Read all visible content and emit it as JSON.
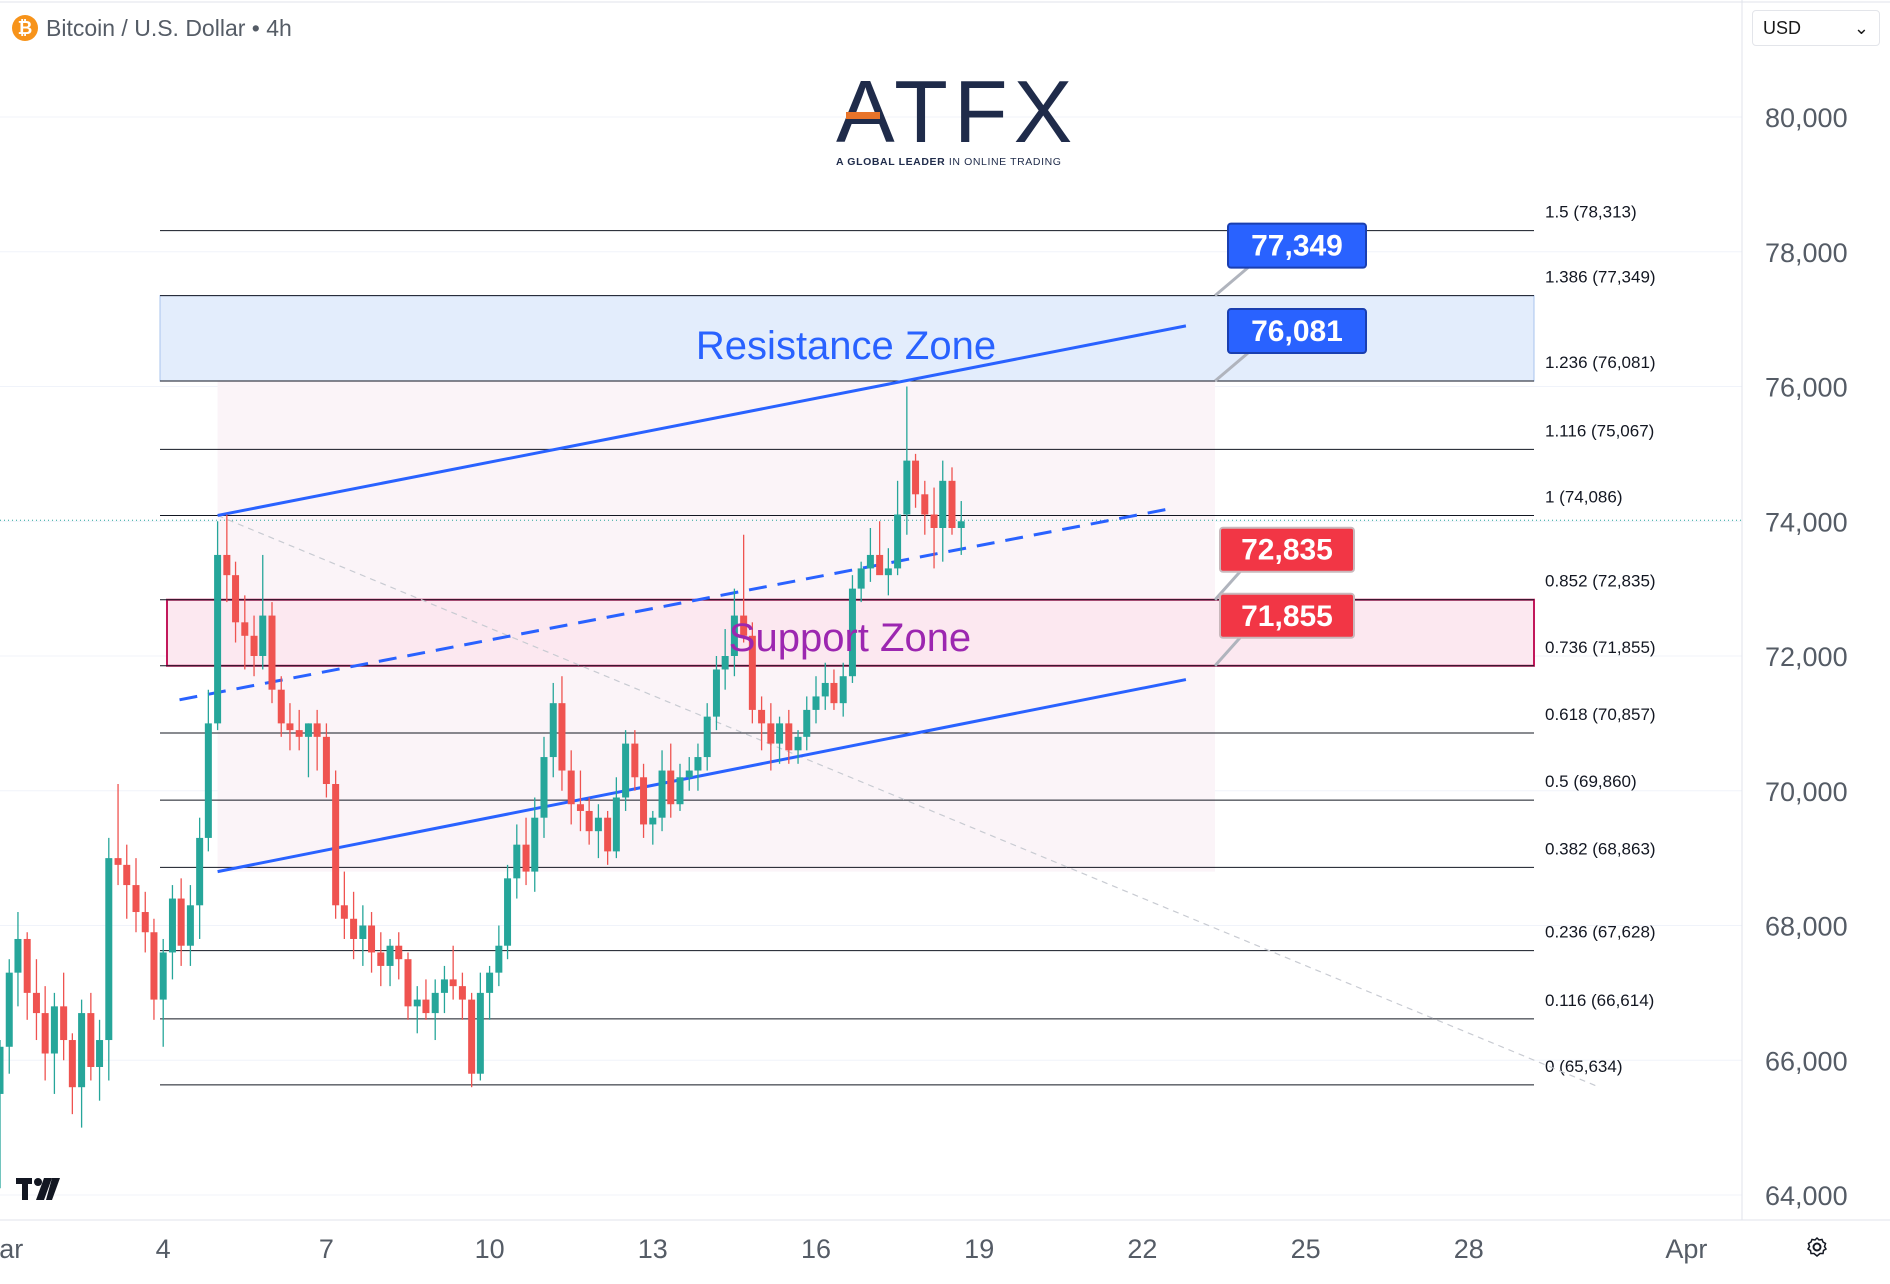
{
  "header": {
    "coin_symbol": "₿",
    "symbol": "Bitcoin / U.S. Dollar • 4h"
  },
  "currency_select": {
    "value": "USD"
  },
  "logo": {
    "name": "ATFX",
    "tagline_bold": "A GLOBAL LEADER",
    "tagline_rest": "IN ONLINE TRADING"
  },
  "icons": {
    "tradingview": "tradingview-logo-icon",
    "settings": "settings-icon",
    "coin": "bitcoin-icon",
    "dropdown": "chevron-down-icon"
  },
  "colors": {
    "up": "#26a69a",
    "down": "#ef5350",
    "trend": "#2962ff",
    "resistance_fill": "#e3edfc",
    "support_border": "#c2185b",
    "support_fill": "#fce8f0",
    "support_text": "#9c27b0",
    "blue_label": "#2962ff",
    "red_label": "#f23645"
  },
  "chart_data": {
    "type": "candlestick",
    "title": "Bitcoin / U.S. Dollar • 4h",
    "y_axis": {
      "min": 64000,
      "max": 80000,
      "ticks": [
        "64,000",
        "66,000",
        "68,000",
        "70,000",
        "72,000",
        "74,000",
        "76,000",
        "78,000",
        "80,000"
      ],
      "tick_values": [
        64000,
        66000,
        68000,
        70000,
        72000,
        74000,
        76000,
        78000,
        80000
      ]
    },
    "x_axis": {
      "labels": [
        "Mar",
        "4",
        "7",
        "10",
        "13",
        "16",
        "19",
        "22",
        "25",
        "28",
        "Apr"
      ],
      "label_days": [
        1,
        4,
        7,
        10,
        13,
        16,
        19,
        22,
        25,
        28,
        32
      ]
    },
    "fib_levels": [
      {
        "ratio": "1.5",
        "value": 78313,
        "label": "1.5 (78,313)"
      },
      {
        "ratio": "1.386",
        "value": 77349,
        "label": "1.386 (77,349)"
      },
      {
        "ratio": "1.236",
        "value": 76081,
        "label": "1.236 (76,081)"
      },
      {
        "ratio": "1.116",
        "value": 75067,
        "label": "1.116 (75,067)"
      },
      {
        "ratio": "1",
        "value": 74086,
        "label": "1 (74,086)"
      },
      {
        "ratio": "0.852",
        "value": 72835,
        "label": "0.852 (72,835)"
      },
      {
        "ratio": "0.736",
        "value": 71855,
        "label": "0.736 (71,855)"
      },
      {
        "ratio": "0.618",
        "value": 70857,
        "label": "0.618 (70,857)"
      },
      {
        "ratio": "0.5",
        "value": 69860,
        "label": "0.5 (69,860)"
      },
      {
        "ratio": "0.382",
        "value": 68863,
        "label": "0.382 (68,863)"
      },
      {
        "ratio": "0.236",
        "value": 67628,
        "label": "0.236 (67,628)"
      },
      {
        "ratio": "0.116",
        "value": 66614,
        "label": "0.116 (66,614)"
      },
      {
        "ratio": "0",
        "value": 65634,
        "label": "0 (65,634)"
      }
    ],
    "zones": [
      {
        "name": "Resistance Zone",
        "low": 76081,
        "high": 77349
      },
      {
        "name": "Support Zone",
        "low": 71855,
        "high": 72835
      }
    ],
    "price_labels": [
      {
        "text": "77,349",
        "value": 77349,
        "color": "blue"
      },
      {
        "text": "76,081",
        "value": 76081,
        "color": "blue"
      },
      {
        "text": "72,835",
        "value": 72835,
        "color": "red"
      },
      {
        "text": "71,855",
        "value": 71855,
        "color": "red"
      }
    ],
    "channel": {
      "upper": [
        [
          5.0,
          74086
        ],
        [
          22.8,
          76900
        ]
      ],
      "lower": [
        [
          5.0,
          68800
        ],
        [
          22.8,
          71650
        ]
      ],
      "middle": [
        [
          4.3,
          71350
        ],
        [
          22.6,
          74200
        ]
      ]
    },
    "diagonal_dotted": [
      [
        5.0,
        74086
      ],
      [
        30.4,
        65600
      ]
    ],
    "last_price": 74000,
    "candles": [
      {
        "t": 1.0,
        "o": 65500,
        "h": 66300,
        "l": 64100,
        "c": 66200
      },
      {
        "t": 1.17,
        "o": 66200,
        "h": 67500,
        "l": 65800,
        "c": 67300
      },
      {
        "t": 1.33,
        "o": 67300,
        "h": 68200,
        "l": 66800,
        "c": 67800
      },
      {
        "t": 1.5,
        "o": 67800,
        "h": 67900,
        "l": 66600,
        "c": 67000
      },
      {
        "t": 1.67,
        "o": 67000,
        "h": 67500,
        "l": 66300,
        "c": 66700
      },
      {
        "t": 1.83,
        "o": 66700,
        "h": 67100,
        "l": 65700,
        "c": 66100
      },
      {
        "t": 2.0,
        "o": 66100,
        "h": 67000,
        "l": 65500,
        "c": 66800
      },
      {
        "t": 2.17,
        "o": 66800,
        "h": 67300,
        "l": 66000,
        "c": 66300
      },
      {
        "t": 2.33,
        "o": 66300,
        "h": 66400,
        "l": 65200,
        "c": 65600
      },
      {
        "t": 2.5,
        "o": 65600,
        "h": 66900,
        "l": 65000,
        "c": 66700
      },
      {
        "t": 2.67,
        "o": 66700,
        "h": 67000,
        "l": 65700,
        "c": 65900
      },
      {
        "t": 2.83,
        "o": 65900,
        "h": 66600,
        "l": 65400,
        "c": 66300
      },
      {
        "t": 3.0,
        "o": 66300,
        "h": 69300,
        "l": 65700,
        "c": 69000
      },
      {
        "t": 3.17,
        "o": 69000,
        "h": 70100,
        "l": 68600,
        "c": 68900
      },
      {
        "t": 3.33,
        "o": 68900,
        "h": 69200,
        "l": 68100,
        "c": 68600
      },
      {
        "t": 3.5,
        "o": 68600,
        "h": 69000,
        "l": 67900,
        "c": 68200
      },
      {
        "t": 3.67,
        "o": 68200,
        "h": 68500,
        "l": 67600,
        "c": 67900
      },
      {
        "t": 3.83,
        "o": 67900,
        "h": 68100,
        "l": 66600,
        "c": 66900
      },
      {
        "t": 4.0,
        "o": 66900,
        "h": 67800,
        "l": 66200,
        "c": 67600
      },
      {
        "t": 4.17,
        "o": 67600,
        "h": 68600,
        "l": 67200,
        "c": 68400
      },
      {
        "t": 4.33,
        "o": 68400,
        "h": 68700,
        "l": 67400,
        "c": 67700
      },
      {
        "t": 4.5,
        "o": 67700,
        "h": 68600,
        "l": 67400,
        "c": 68300
      },
      {
        "t": 4.67,
        "o": 68300,
        "h": 69600,
        "l": 67800,
        "c": 69300
      },
      {
        "t": 4.83,
        "o": 69300,
        "h": 71500,
        "l": 69100,
        "c": 71000
      },
      {
        "t": 5.0,
        "o": 71000,
        "h": 74000,
        "l": 70900,
        "c": 73500
      },
      {
        "t": 5.17,
        "o": 73500,
        "h": 74100,
        "l": 72800,
        "c": 73200
      },
      {
        "t": 5.33,
        "o": 73200,
        "h": 73400,
        "l": 72200,
        "c": 72500
      },
      {
        "t": 5.5,
        "o": 72500,
        "h": 72900,
        "l": 71800,
        "c": 72300
      },
      {
        "t": 5.67,
        "o": 72300,
        "h": 72600,
        "l": 71700,
        "c": 72000
      },
      {
        "t": 5.83,
        "o": 72000,
        "h": 73500,
        "l": 71800,
        "c": 72600
      },
      {
        "t": 6.0,
        "o": 72600,
        "h": 72800,
        "l": 71300,
        "c": 71500
      },
      {
        "t": 6.17,
        "o": 71500,
        "h": 71700,
        "l": 70800,
        "c": 71000
      },
      {
        "t": 6.33,
        "o": 71000,
        "h": 71300,
        "l": 70600,
        "c": 70900
      },
      {
        "t": 6.5,
        "o": 70900,
        "h": 71200,
        "l": 70600,
        "c": 70800
      },
      {
        "t": 6.67,
        "o": 70800,
        "h": 71000,
        "l": 70200,
        "c": 71000
      },
      {
        "t": 6.83,
        "o": 71000,
        "h": 71200,
        "l": 70300,
        "c": 70800
      },
      {
        "t": 7.0,
        "o": 70800,
        "h": 71000,
        "l": 69900,
        "c": 70100
      },
      {
        "t": 7.17,
        "o": 70100,
        "h": 70300,
        "l": 68100,
        "c": 68300
      },
      {
        "t": 7.33,
        "o": 68300,
        "h": 68800,
        "l": 67800,
        "c": 68100
      },
      {
        "t": 7.5,
        "o": 68100,
        "h": 68500,
        "l": 67500,
        "c": 67800
      },
      {
        "t": 7.67,
        "o": 67800,
        "h": 68300,
        "l": 67400,
        "c": 68000
      },
      {
        "t": 7.83,
        "o": 68000,
        "h": 68200,
        "l": 67300,
        "c": 67600
      },
      {
        "t": 8.0,
        "o": 67600,
        "h": 67900,
        "l": 67100,
        "c": 67400
      },
      {
        "t": 8.17,
        "o": 67400,
        "h": 67800,
        "l": 67100,
        "c": 67700
      },
      {
        "t": 8.33,
        "o": 67700,
        "h": 67900,
        "l": 67200,
        "c": 67500
      },
      {
        "t": 8.5,
        "o": 67500,
        "h": 67600,
        "l": 66600,
        "c": 66800
      },
      {
        "t": 8.67,
        "o": 66800,
        "h": 67100,
        "l": 66400,
        "c": 66900
      },
      {
        "t": 8.83,
        "o": 66900,
        "h": 67200,
        "l": 66600,
        "c": 66700
      },
      {
        "t": 9.0,
        "o": 66700,
        "h": 67200,
        "l": 66300,
        "c": 67000
      },
      {
        "t": 9.17,
        "o": 67000,
        "h": 67400,
        "l": 66700,
        "c": 67200
      },
      {
        "t": 9.33,
        "o": 67200,
        "h": 67700,
        "l": 66900,
        "c": 67100
      },
      {
        "t": 9.5,
        "o": 67100,
        "h": 67300,
        "l": 66600,
        "c": 66900
      },
      {
        "t": 9.67,
        "o": 66900,
        "h": 67000,
        "l": 65600,
        "c": 65800
      },
      {
        "t": 9.83,
        "o": 65800,
        "h": 67300,
        "l": 65700,
        "c": 67000
      },
      {
        "t": 10.0,
        "o": 67000,
        "h": 67400,
        "l": 66600,
        "c": 67300
      },
      {
        "t": 10.17,
        "o": 67300,
        "h": 68000,
        "l": 67100,
        "c": 67700
      },
      {
        "t": 10.33,
        "o": 67700,
        "h": 68900,
        "l": 67500,
        "c": 68700
      },
      {
        "t": 10.5,
        "o": 68700,
        "h": 69500,
        "l": 68400,
        "c": 69200
      },
      {
        "t": 10.67,
        "o": 69200,
        "h": 69600,
        "l": 68600,
        "c": 68800
      },
      {
        "t": 10.83,
        "o": 68800,
        "h": 69900,
        "l": 68500,
        "c": 69600
      },
      {
        "t": 11.0,
        "o": 69600,
        "h": 70800,
        "l": 69300,
        "c": 70500
      },
      {
        "t": 11.17,
        "o": 70500,
        "h": 71600,
        "l": 70200,
        "c": 71300
      },
      {
        "t": 11.33,
        "o": 71300,
        "h": 71700,
        "l": 70000,
        "c": 70300
      },
      {
        "t": 11.5,
        "o": 70300,
        "h": 70600,
        "l": 69500,
        "c": 69800
      },
      {
        "t": 11.67,
        "o": 69800,
        "h": 70300,
        "l": 69400,
        "c": 69700
      },
      {
        "t": 11.83,
        "o": 69700,
        "h": 69900,
        "l": 69200,
        "c": 69400
      },
      {
        "t": 12.0,
        "o": 69400,
        "h": 69800,
        "l": 69000,
        "c": 69600
      },
      {
        "t": 12.17,
        "o": 69600,
        "h": 69700,
        "l": 68900,
        "c": 69100
      },
      {
        "t": 12.33,
        "o": 69100,
        "h": 70200,
        "l": 69000,
        "c": 69900
      },
      {
        "t": 12.5,
        "o": 69900,
        "h": 70900,
        "l": 69700,
        "c": 70700
      },
      {
        "t": 12.67,
        "o": 70700,
        "h": 70900,
        "l": 70000,
        "c": 70200
      },
      {
        "t": 12.83,
        "o": 70200,
        "h": 70400,
        "l": 69300,
        "c": 69500
      },
      {
        "t": 13.0,
        "o": 69500,
        "h": 69700,
        "l": 69200,
        "c": 69600
      },
      {
        "t": 13.17,
        "o": 69600,
        "h": 70600,
        "l": 69400,
        "c": 70300
      },
      {
        "t": 13.33,
        "o": 70300,
        "h": 70700,
        "l": 69600,
        "c": 69800
      },
      {
        "t": 13.5,
        "o": 69800,
        "h": 70400,
        "l": 69700,
        "c": 70200
      },
      {
        "t": 13.67,
        "o": 70200,
        "h": 70500,
        "l": 70000,
        "c": 70300
      },
      {
        "t": 13.83,
        "o": 70300,
        "h": 70700,
        "l": 70000,
        "c": 70500
      },
      {
        "t": 14.0,
        "o": 70500,
        "h": 71300,
        "l": 70300,
        "c": 71100
      },
      {
        "t": 14.17,
        "o": 71100,
        "h": 72000,
        "l": 70900,
        "c": 71800
      },
      {
        "t": 14.33,
        "o": 71800,
        "h": 72400,
        "l": 71500,
        "c": 72000
      },
      {
        "t": 14.5,
        "o": 72000,
        "h": 73000,
        "l": 71700,
        "c": 72600
      },
      {
        "t": 14.67,
        "o": 72600,
        "h": 73800,
        "l": 72200,
        "c": 72300
      },
      {
        "t": 14.83,
        "o": 72300,
        "h": 72500,
        "l": 71000,
        "c": 71200
      },
      {
        "t": 15.0,
        "o": 71200,
        "h": 71400,
        "l": 70600,
        "c": 71000
      },
      {
        "t": 15.17,
        "o": 71000,
        "h": 71300,
        "l": 70300,
        "c": 70700
      },
      {
        "t": 15.33,
        "o": 70700,
        "h": 71100,
        "l": 70400,
        "c": 71000
      },
      {
        "t": 15.5,
        "o": 71000,
        "h": 71200,
        "l": 70400,
        "c": 70600
      },
      {
        "t": 15.67,
        "o": 70600,
        "h": 70900,
        "l": 70400,
        "c": 70800
      },
      {
        "t": 15.83,
        "o": 70800,
        "h": 71400,
        "l": 70600,
        "c": 71200
      },
      {
        "t": 16.0,
        "o": 71200,
        "h": 71700,
        "l": 71000,
        "c": 71400
      },
      {
        "t": 16.17,
        "o": 71400,
        "h": 71900,
        "l": 71200,
        "c": 71600
      },
      {
        "t": 16.33,
        "o": 71600,
        "h": 71800,
        "l": 71200,
        "c": 71300
      },
      {
        "t": 16.5,
        "o": 71300,
        "h": 71900,
        "l": 71100,
        "c": 71700
      },
      {
        "t": 16.67,
        "o": 71700,
        "h": 73200,
        "l": 71600,
        "c": 73000
      },
      {
        "t": 16.83,
        "o": 73000,
        "h": 73400,
        "l": 72800,
        "c": 73300
      },
      {
        "t": 17.0,
        "o": 73300,
        "h": 73900,
        "l": 73100,
        "c": 73500
      },
      {
        "t": 17.17,
        "o": 73500,
        "h": 74000,
        "l": 73300,
        "c": 73200
      },
      {
        "t": 17.33,
        "o": 73200,
        "h": 73600,
        "l": 72900,
        "c": 73300
      },
      {
        "t": 17.5,
        "o": 73300,
        "h": 74600,
        "l": 73200,
        "c": 74100
      },
      {
        "t": 17.67,
        "o": 74100,
        "h": 76000,
        "l": 73800,
        "c": 74900
      },
      {
        "t": 17.83,
        "o": 74900,
        "h": 75000,
        "l": 74200,
        "c": 74400
      },
      {
        "t": 18.0,
        "o": 74400,
        "h": 74600,
        "l": 73800,
        "c": 74100
      },
      {
        "t": 18.17,
        "o": 74100,
        "h": 74500,
        "l": 73300,
        "c": 73900
      },
      {
        "t": 18.33,
        "o": 73900,
        "h": 74900,
        "l": 73400,
        "c": 74600
      },
      {
        "t": 18.5,
        "o": 74600,
        "h": 74800,
        "l": 73800,
        "c": 73900
      },
      {
        "t": 18.67,
        "o": 73900,
        "h": 74300,
        "l": 73500,
        "c": 74000
      }
    ]
  }
}
